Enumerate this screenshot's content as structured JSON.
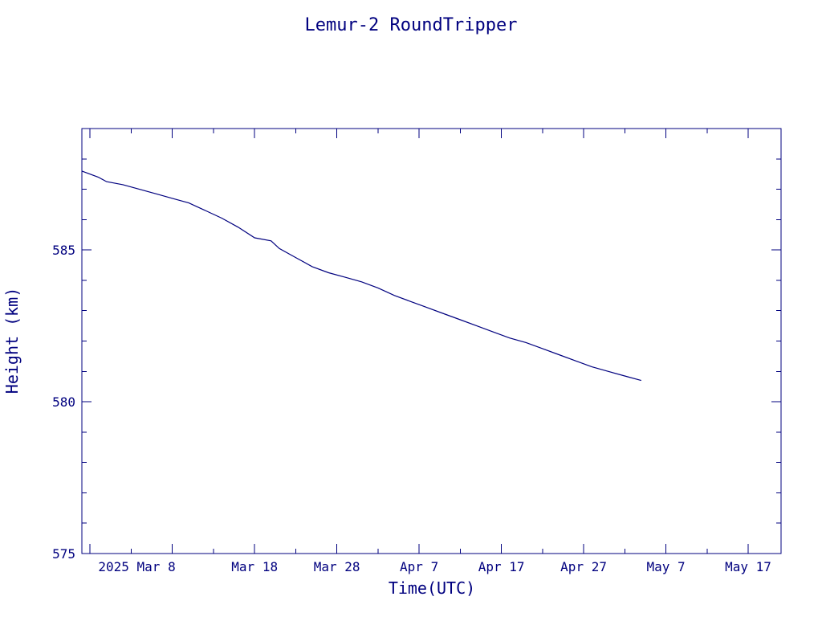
{
  "title": "Lemur-2 RoundTripper",
  "chart_data": {
    "type": "line",
    "title": "Lemur-2 RoundTripper",
    "xlabel": "Time(UTC)",
    "ylabel": "Height (km)",
    "x_ticks": [
      "2025 Mar  8",
      "Mar 18",
      "Mar 28",
      "Apr  7",
      "Apr 17",
      "Apr 27",
      "May  7",
      "May 17"
    ],
    "y_ticks": [
      575,
      580,
      585
    ],
    "xlim": [
      "2025-02-25",
      "2025-05-21"
    ],
    "ylim": [
      575,
      589
    ],
    "grid": false,
    "series": [
      {
        "x": [
          "2025-02-25",
          "2025-02-27",
          "2025-02-28",
          "2025-03-02",
          "2025-03-04",
          "2025-03-06",
          "2025-03-08",
          "2025-03-10",
          "2025-03-12",
          "2025-03-14",
          "2025-03-16",
          "2025-03-18",
          "2025-03-20",
          "2025-03-21",
          "2025-03-23",
          "2025-03-25",
          "2025-03-27",
          "2025-03-29",
          "2025-03-31",
          "2025-04-02",
          "2025-04-04",
          "2025-04-06",
          "2025-04-08",
          "2025-04-10",
          "2025-04-12",
          "2025-04-14",
          "2025-04-16",
          "2025-04-18",
          "2025-04-20",
          "2025-04-22",
          "2025-04-24",
          "2025-04-26",
          "2025-04-28",
          "2025-04-30",
          "2025-05-02",
          "2025-05-04"
        ],
        "y": [
          587.6,
          587.4,
          587.25,
          587.15,
          587.0,
          586.85,
          586.7,
          586.55,
          586.3,
          586.05,
          585.75,
          585.4,
          585.3,
          585.05,
          584.75,
          584.45,
          584.25,
          584.1,
          583.95,
          583.75,
          583.5,
          583.3,
          583.1,
          582.9,
          582.7,
          582.5,
          582.3,
          582.1,
          581.95,
          581.75,
          581.55,
          581.35,
          581.15,
          581.0,
          580.85,
          580.7
        ]
      }
    ]
  }
}
